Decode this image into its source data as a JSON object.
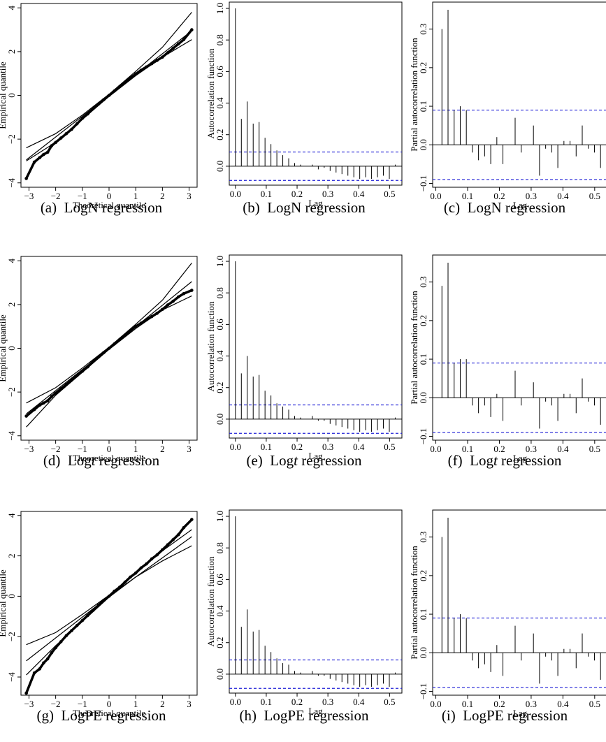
{
  "figure": {
    "rows": [
      {
        "model": "LogN"
      },
      {
        "model": "Logt"
      },
      {
        "model": "LogPE"
      }
    ]
  },
  "chart_data": [
    {
      "type": "scatter",
      "kind": "qq",
      "row": 0,
      "col": 0,
      "caption": {
        "letter": "(a)",
        "model": "LogN",
        "italic": "",
        "suffix": "regression"
      },
      "xlabel": "Theoretical quantile",
      "ylabel": "Empirical quantile",
      "xlim": [
        -3.3,
        3.3
      ],
      "ylim": [
        -4.2,
        4.2
      ],
      "xticks": [
        -3,
        -2,
        -1,
        0,
        1,
        2,
        3
      ],
      "xtick_labels": [
        "−3",
        "−2",
        "−1",
        "0",
        "1",
        "2",
        "3"
      ],
      "yticks": [
        -4,
        -2,
        0,
        2,
        4
      ],
      "ytick_labels": [
        "−4",
        "−2",
        "0",
        "2",
        "4"
      ],
      "points": [
        [
          -3.1,
          -3.8
        ],
        [
          -2.8,
          -3.05
        ],
        [
          -2.6,
          -2.85
        ],
        [
          -2.45,
          -2.7
        ],
        [
          -2.3,
          -2.6
        ],
        [
          -2.15,
          -2.3
        ],
        [
          -2.0,
          -2.15
        ],
        [
          -1.8,
          -1.95
        ],
        [
          -1.6,
          -1.75
        ],
        [
          -1.4,
          -1.55
        ],
        [
          -1.2,
          -1.3
        ],
        [
          -1.0,
          -1.05
        ],
        [
          -0.8,
          -0.85
        ],
        [
          -0.6,
          -0.6
        ],
        [
          -0.4,
          -0.4
        ],
        [
          -0.2,
          -0.2
        ],
        [
          0.0,
          0.0
        ],
        [
          0.2,
          0.2
        ],
        [
          0.4,
          0.4
        ],
        [
          0.6,
          0.6
        ],
        [
          0.8,
          0.8
        ],
        [
          1.0,
          0.98
        ],
        [
          1.2,
          1.15
        ],
        [
          1.4,
          1.3
        ],
        [
          1.6,
          1.45
        ],
        [
          1.8,
          1.6
        ],
        [
          2.0,
          1.75
        ],
        [
          2.2,
          1.95
        ],
        [
          2.4,
          2.15
        ],
        [
          2.6,
          2.35
        ],
        [
          2.8,
          2.55
        ],
        [
          3.1,
          3.0
        ]
      ],
      "envelope_lower": [
        [
          -3.1,
          -3.0
        ],
        [
          -2,
          -2.15
        ],
        [
          -1,
          -1.1
        ],
        [
          0,
          -0.05
        ],
        [
          1,
          0.9
        ],
        [
          2,
          1.75
        ],
        [
          3.1,
          2.55
        ]
      ],
      "envelope_middle": [
        [
          -3.1,
          -2.95
        ],
        [
          0,
          0
        ],
        [
          3.1,
          2.95
        ]
      ],
      "envelope_upper": [
        [
          -3.1,
          -2.4
        ],
        [
          -2,
          -1.75
        ],
        [
          -1,
          -0.9
        ],
        [
          0,
          0.05
        ],
        [
          1,
          1.1
        ],
        [
          2,
          2.2
        ],
        [
          3.1,
          3.8
        ]
      ]
    },
    {
      "type": "bar",
      "kind": "acf",
      "row": 0,
      "col": 1,
      "caption": {
        "letter": "(b)",
        "model": "LogN",
        "italic": "",
        "suffix": "regression"
      },
      "xlabel": "Lag",
      "ylabel": "Autocorrelation function",
      "xlim": [
        -0.02,
        0.54
      ],
      "ylim": [
        -0.12,
        1.04
      ],
      "xticks": [
        0,
        0.1,
        0.2,
        0.3,
        0.4,
        0.5
      ],
      "xtick_labels": [
        "0.0",
        "0.1",
        "0.2",
        "0.3",
        "0.4",
        "0.5"
      ],
      "yticks": [
        0,
        0.2,
        0.4,
        0.6,
        0.8,
        1.0
      ],
      "ytick_labels": [
        "0.0",
        "0.2",
        "0.4",
        "0.6",
        "0.8",
        "1.0"
      ],
      "ci": 0.09,
      "lag_step": 0.0192,
      "values": [
        1.0,
        0.3,
        0.41,
        0.27,
        0.28,
        0.18,
        0.14,
        0.1,
        0.07,
        0.05,
        0.02,
        0.01,
        0.0,
        0.01,
        -0.02,
        -0.01,
        -0.03,
        -0.04,
        -0.05,
        -0.06,
        -0.07,
        -0.08,
        -0.07,
        -0.08,
        -0.07,
        -0.06,
        -0.08,
        0.01
      ]
    },
    {
      "type": "bar",
      "kind": "pacf",
      "row": 0,
      "col": 2,
      "caption": {
        "letter": "(c)",
        "model": "LogN",
        "italic": "",
        "suffix": "regression"
      },
      "xlabel": "Lag",
      "ylabel": "Partial autocorrelation function",
      "xlim": [
        -0.01,
        0.54
      ],
      "ylim": [
        -0.11,
        0.37
      ],
      "xticks": [
        0,
        0.1,
        0.2,
        0.3,
        0.4,
        0.5
      ],
      "xtick_labels": [
        "0.0",
        "0.1",
        "0.2",
        "0.3",
        "0.4",
        "0.5"
      ],
      "yticks": [
        -0.1,
        0.0,
        0.1,
        0.2,
        0.3
      ],
      "ytick_labels": [
        "−0.1",
        "0.0",
        "0.1",
        "0.2",
        "0.3"
      ],
      "ci": 0.09,
      "lag_step": 0.0192,
      "start_lag": 1,
      "values": [
        0.3,
        0.35,
        0.09,
        0.1,
        0.09,
        -0.02,
        -0.04,
        -0.03,
        -0.05,
        0.02,
        -0.05,
        0.0,
        0.07,
        -0.02,
        0.0,
        0.05,
        -0.08,
        -0.01,
        -0.02,
        -0.06,
        0.01,
        0.01,
        -0.03,
        0.05,
        -0.01,
        -0.02,
        -0.06,
        0.06
      ]
    },
    {
      "type": "scatter",
      "kind": "qq",
      "row": 1,
      "col": 0,
      "caption": {
        "letter": "(d)",
        "model": "Log",
        "italic": "t",
        "suffix": "regression"
      },
      "xlabel": "Theoretical quantile",
      "ylabel": "Empirical quantile",
      "xlim": [
        -3.3,
        3.3
      ],
      "ylim": [
        -4.2,
        4.2
      ],
      "xticks": [
        -3,
        -2,
        -1,
        0,
        1,
        2,
        3
      ],
      "xtick_labels": [
        "−3",
        "−2",
        "−1",
        "0",
        "1",
        "2",
        "3"
      ],
      "yticks": [
        -4,
        -2,
        0,
        2,
        4
      ],
      "ytick_labels": [
        "−4",
        "−2",
        "0",
        "2",
        "4"
      ],
      "points": [
        [
          -3.1,
          -3.1
        ],
        [
          -2.8,
          -2.8
        ],
        [
          -2.6,
          -2.6
        ],
        [
          -2.45,
          -2.5
        ],
        [
          -2.3,
          -2.4
        ],
        [
          -2.15,
          -2.2
        ],
        [
          -2.0,
          -2.05
        ],
        [
          -1.8,
          -1.85
        ],
        [
          -1.6,
          -1.65
        ],
        [
          -1.4,
          -1.45
        ],
        [
          -1.2,
          -1.25
        ],
        [
          -1.0,
          -1.05
        ],
        [
          -0.8,
          -0.85
        ],
        [
          -0.6,
          -0.6
        ],
        [
          -0.4,
          -0.4
        ],
        [
          -0.2,
          -0.2
        ],
        [
          0.0,
          0.0
        ],
        [
          0.2,
          0.2
        ],
        [
          0.4,
          0.4
        ],
        [
          0.6,
          0.6
        ],
        [
          0.8,
          0.8
        ],
        [
          1.0,
          1.0
        ],
        [
          1.2,
          1.15
        ],
        [
          1.4,
          1.3
        ],
        [
          1.6,
          1.45
        ],
        [
          1.8,
          1.6
        ],
        [
          2.0,
          1.78
        ],
        [
          2.2,
          1.98
        ],
        [
          2.4,
          2.15
        ],
        [
          2.6,
          2.35
        ],
        [
          2.8,
          2.5
        ],
        [
          3.1,
          2.65
        ]
      ],
      "envelope_lower": [
        [
          -3.1,
          -3.6
        ],
        [
          -2,
          -2.15
        ],
        [
          -1,
          -1.1
        ],
        [
          0,
          -0.05
        ],
        [
          1,
          0.9
        ],
        [
          2,
          1.75
        ],
        [
          3.1,
          2.4
        ]
      ],
      "envelope_middle": [
        [
          -3.1,
          -3.0
        ],
        [
          0,
          0
        ],
        [
          3.1,
          3.05
        ]
      ],
      "envelope_upper": [
        [
          -3.1,
          -2.5
        ],
        [
          -2,
          -1.8
        ],
        [
          -1,
          -0.9
        ],
        [
          0,
          0.05
        ],
        [
          1,
          1.1
        ],
        [
          2,
          2.2
        ],
        [
          3.1,
          3.9
        ]
      ]
    },
    {
      "type": "bar",
      "kind": "acf",
      "row": 1,
      "col": 1,
      "caption": {
        "letter": "(e)",
        "model": "Log",
        "italic": "t",
        "suffix": "regression"
      },
      "xlabel": "Lag",
      "ylabel": "Autocorrelation function",
      "xlim": [
        -0.02,
        0.54
      ],
      "ylim": [
        -0.12,
        1.04
      ],
      "xticks": [
        0,
        0.1,
        0.2,
        0.3,
        0.4,
        0.5
      ],
      "xtick_labels": [
        "0.0",
        "0.1",
        "0.2",
        "0.3",
        "0.4",
        "0.5"
      ],
      "yticks": [
        0,
        0.2,
        0.4,
        0.6,
        0.8,
        1.0
      ],
      "ytick_labels": [
        "0.0",
        "0.2",
        "0.4",
        "0.6",
        "0.8",
        "1.0"
      ],
      "ci": 0.09,
      "lag_step": 0.0192,
      "values": [
        1.0,
        0.29,
        0.4,
        0.27,
        0.28,
        0.18,
        0.15,
        0.1,
        0.08,
        0.06,
        0.02,
        0.01,
        0.0,
        0.02,
        -0.01,
        -0.01,
        -0.03,
        -0.04,
        -0.05,
        -0.06,
        -0.07,
        -0.08,
        -0.07,
        -0.08,
        -0.07,
        -0.06,
        -0.08,
        0.01
      ]
    },
    {
      "type": "bar",
      "kind": "pacf",
      "row": 1,
      "col": 2,
      "caption": {
        "letter": "(f)",
        "model": "Log",
        "italic": "t",
        "suffix": "regression"
      },
      "xlabel": "Lag",
      "ylabel": "Partial autocorrelation function",
      "xlim": [
        -0.01,
        0.54
      ],
      "ylim": [
        -0.11,
        0.37
      ],
      "xticks": [
        0,
        0.1,
        0.2,
        0.3,
        0.4,
        0.5
      ],
      "xtick_labels": [
        "0.0",
        "0.1",
        "0.2",
        "0.3",
        "0.4",
        "0.5"
      ],
      "yticks": [
        -0.1,
        0.0,
        0.1,
        0.2,
        0.3
      ],
      "ytick_labels": [
        "−0.1",
        "0.0",
        "0.1",
        "0.2",
        "0.3"
      ],
      "ci": 0.09,
      "lag_step": 0.0192,
      "start_lag": 1,
      "values": [
        0.29,
        0.35,
        0.09,
        0.1,
        0.1,
        -0.02,
        -0.04,
        -0.02,
        -0.05,
        0.01,
        -0.06,
        0.0,
        0.07,
        -0.02,
        0.0,
        0.04,
        -0.08,
        -0.01,
        -0.02,
        -0.06,
        0.01,
        0.01,
        -0.04,
        0.05,
        -0.01,
        -0.02,
        -0.07,
        0.06
      ]
    },
    {
      "type": "scatter",
      "kind": "qq",
      "row": 2,
      "col": 0,
      "caption": {
        "letter": "(g)",
        "model": "LogPE",
        "italic": "",
        "suffix": "regression"
      },
      "xlabel": "Theoretical quantile",
      "ylabel": "Empirical quantile",
      "xlim": [
        -3.3,
        3.3
      ],
      "ylim": [
        -4.9,
        4.2
      ],
      "xticks": [
        -3,
        -2,
        -1,
        0,
        1,
        2,
        3
      ],
      "xtick_labels": [
        "−3",
        "−2",
        "−1",
        "0",
        "1",
        "2",
        "3"
      ],
      "yticks": [
        -4,
        -2,
        0,
        2,
        4
      ],
      "ytick_labels": [
        "−4",
        "−2",
        "0",
        "2",
        "4"
      ],
      "points": [
        [
          -3.1,
          -4.8
        ],
        [
          -2.8,
          -3.8
        ],
        [
          -2.6,
          -3.6
        ],
        [
          -2.45,
          -3.3
        ],
        [
          -2.3,
          -3.1
        ],
        [
          -2.15,
          -2.8
        ],
        [
          -2.0,
          -2.55
        ],
        [
          -1.8,
          -2.25
        ],
        [
          -1.6,
          -1.95
        ],
        [
          -1.4,
          -1.7
        ],
        [
          -1.2,
          -1.45
        ],
        [
          -1.0,
          -1.2
        ],
        [
          -0.8,
          -0.95
        ],
        [
          -0.6,
          -0.7
        ],
        [
          -0.4,
          -0.45
        ],
        [
          -0.2,
          -0.2
        ],
        [
          0.0,
          0.0
        ],
        [
          0.2,
          0.25
        ],
        [
          0.4,
          0.45
        ],
        [
          0.6,
          0.7
        ],
        [
          0.8,
          0.95
        ],
        [
          1.0,
          1.15
        ],
        [
          1.2,
          1.4
        ],
        [
          1.4,
          1.6
        ],
        [
          1.6,
          1.85
        ],
        [
          1.8,
          2.05
        ],
        [
          2.0,
          2.3
        ],
        [
          2.2,
          2.55
        ],
        [
          2.4,
          2.8
        ],
        [
          2.6,
          3.05
        ],
        [
          2.8,
          3.4
        ],
        [
          3.1,
          3.8
        ]
      ],
      "envelope_lower": [
        [
          -3.1,
          -3.9
        ],
        [
          -2,
          -2.45
        ],
        [
          -1,
          -1.25
        ],
        [
          0,
          -0.05
        ],
        [
          1,
          0.95
        ],
        [
          2,
          1.75
        ],
        [
          3.1,
          2.5
        ]
      ],
      "envelope_middle": [
        [
          -3.1,
          -3.2
        ],
        [
          0,
          0
        ],
        [
          3.1,
          2.95
        ]
      ],
      "envelope_upper": [
        [
          -3.1,
          -2.4
        ],
        [
          -2,
          -1.8
        ],
        [
          -1,
          -0.9
        ],
        [
          0,
          0.05
        ],
        [
          1,
          1.15
        ],
        [
          2,
          2.25
        ],
        [
          3.1,
          3.3
        ]
      ]
    },
    {
      "type": "bar",
      "kind": "acf",
      "row": 2,
      "col": 1,
      "caption": {
        "letter": "(h)",
        "model": "LogPE",
        "italic": "",
        "suffix": "regression"
      },
      "xlabel": "Lag",
      "ylabel": "Autocorrelation function",
      "xlim": [
        -0.02,
        0.54
      ],
      "ylim": [
        -0.12,
        1.04
      ],
      "xticks": [
        0,
        0.1,
        0.2,
        0.3,
        0.4,
        0.5
      ],
      "xtick_labels": [
        "0.0",
        "0.1",
        "0.2",
        "0.3",
        "0.4",
        "0.5"
      ],
      "yticks": [
        0,
        0.2,
        0.4,
        0.6,
        0.8,
        1.0
      ],
      "ytick_labels": [
        "0.0",
        "0.2",
        "0.4",
        "0.6",
        "0.8",
        "1.0"
      ],
      "ci": 0.09,
      "lag_step": 0.0192,
      "values": [
        1.0,
        0.3,
        0.41,
        0.27,
        0.28,
        0.18,
        0.14,
        0.1,
        0.07,
        0.06,
        0.02,
        0.01,
        0.0,
        0.02,
        -0.01,
        -0.01,
        -0.03,
        -0.04,
        -0.05,
        -0.06,
        -0.07,
        -0.08,
        -0.07,
        -0.08,
        -0.07,
        -0.06,
        -0.08,
        0.01
      ]
    },
    {
      "type": "bar",
      "kind": "pacf",
      "row": 2,
      "col": 2,
      "caption": {
        "letter": "(i)",
        "model": "LogPE",
        "italic": "",
        "suffix": "regression"
      },
      "xlabel": "Lag",
      "ylabel": "Partial autocorrelation function",
      "xlim": [
        -0.01,
        0.54
      ],
      "ylim": [
        -0.11,
        0.37
      ],
      "xticks": [
        0,
        0.1,
        0.2,
        0.3,
        0.4,
        0.5
      ],
      "xtick_labels": [
        "0.0",
        "0.1",
        "0.2",
        "0.3",
        "0.4",
        "0.5"
      ],
      "yticks": [
        -0.1,
        0.0,
        0.1,
        0.2,
        0.3
      ],
      "ytick_labels": [
        "−0.1",
        "0.0",
        "0.1",
        "0.2",
        "0.3"
      ],
      "ci": 0.09,
      "lag_step": 0.0192,
      "start_lag": 1,
      "values": [
        0.3,
        0.35,
        0.09,
        0.1,
        0.09,
        -0.02,
        -0.04,
        -0.03,
        -0.05,
        0.02,
        -0.06,
        0.0,
        0.07,
        -0.02,
        0.0,
        0.05,
        -0.08,
        -0.01,
        -0.02,
        -0.06,
        0.01,
        0.01,
        -0.04,
        0.05,
        -0.01,
        -0.02,
        -0.07,
        0.06
      ]
    }
  ],
  "colors": {
    "axis": "#000000",
    "ci_line": "#1f1fd6",
    "points": "#000000"
  }
}
